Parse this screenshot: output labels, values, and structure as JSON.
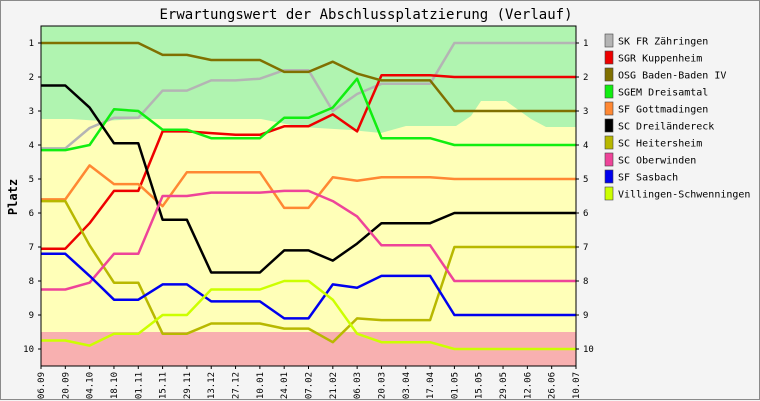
{
  "chart_data": {
    "type": "line",
    "title": "Erwartungswert der Abschlussplatzierung (Verlauf)",
    "ylabel": "Platz",
    "xlabel": "",
    "x": [
      "06.09",
      "20.09",
      "04.10",
      "18.10",
      "01.11",
      "15.11",
      "29.11",
      "13.12",
      "27.12",
      "10.01",
      "24.01",
      "07.02",
      "21.02",
      "06.03",
      "20.03",
      "03.04",
      "17.04",
      "01.05",
      "15.05",
      "29.05",
      "12.06",
      "26.06",
      "10.07"
    ],
    "ylim": [
      1,
      10
    ],
    "y_inverted": true,
    "yticks": [
      "1",
      "2",
      "3",
      "4",
      "5",
      "6",
      "7",
      "8",
      "9",
      "10"
    ],
    "legend_position": "right",
    "zones": [
      {
        "name": "top",
        "color": "#b0f4b0"
      },
      {
        "name": "middle",
        "color": "#ffffb8"
      },
      {
        "name": "bottom",
        "color": "#f8b0b0"
      }
    ],
    "series": [
      {
        "name": "SK FR Zähringen",
        "color": "#b4b4b4",
        "values": [
          4.1,
          4.1,
          3.5,
          3.2,
          3.2,
          2.4,
          2.4,
          2.1,
          2.1,
          2.05,
          1.8,
          1.8,
          3.0,
          2.5,
          2.2,
          2.2,
          2.2,
          1.0,
          1.0,
          1.0,
          1.0,
          1.0,
          1.0
        ]
      },
      {
        "name": "SGR Kuppenheim",
        "color": "#ee0000",
        "values": [
          7.05,
          7.05,
          6.3,
          5.35,
          5.35,
          3.6,
          3.6,
          3.65,
          3.7,
          3.7,
          3.45,
          3.45,
          3.1,
          3.6,
          1.95,
          1.95,
          1.95,
          2.0,
          2.0,
          2.0,
          2.0,
          2.0,
          2.0
        ]
      },
      {
        "name": "OSG Baden-Baden IV",
        "color": "#807000",
        "values": [
          1.0,
          1.0,
          1.0,
          1.0,
          1.0,
          1.35,
          1.35,
          1.5,
          1.5,
          1.5,
          1.85,
          1.85,
          1.55,
          1.9,
          2.1,
          2.1,
          2.1,
          3.0,
          3.0,
          3.0,
          3.0,
          3.0,
          3.0
        ]
      },
      {
        "name": "SGEM Dreisamtal",
        "color": "#11ee11",
        "values": [
          4.15,
          4.15,
          4.0,
          2.95,
          3.0,
          3.55,
          3.55,
          3.8,
          3.8,
          3.8,
          3.2,
          3.2,
          2.9,
          2.05,
          3.8,
          3.8,
          3.8,
          4.0,
          4.0,
          4.0,
          4.0,
          4.0,
          4.0
        ]
      },
      {
        "name": "SF Gottmadingen",
        "color": "#ff8833",
        "values": [
          5.6,
          5.6,
          4.6,
          5.15,
          5.15,
          5.8,
          4.8,
          4.8,
          4.8,
          4.8,
          5.85,
          5.85,
          4.95,
          5.05,
          4.95,
          4.95,
          4.95,
          5.0,
          5.0,
          5.0,
          5.0,
          5.0,
          5.0
        ]
      },
      {
        "name": "SC Dreiländereck",
        "color": "#000000",
        "values": [
          2.25,
          2.25,
          2.9,
          3.95,
          3.95,
          6.2,
          6.2,
          7.75,
          7.75,
          7.75,
          7.1,
          7.1,
          7.4,
          6.9,
          6.3,
          6.3,
          6.3,
          6.0,
          6.0,
          6.0,
          6.0,
          6.0,
          6.0
        ]
      },
      {
        "name": "SC Heitersheim",
        "color": "#b8b800",
        "values": [
          5.65,
          5.65,
          6.95,
          8.05,
          8.05,
          9.55,
          9.55,
          9.25,
          9.25,
          9.25,
          9.4,
          9.4,
          9.8,
          9.1,
          9.15,
          9.15,
          9.15,
          7.0,
          7.0,
          7.0,
          7.0,
          7.0,
          7.0
        ]
      },
      {
        "name": "SC Oberwinden",
        "color": "#ee4499",
        "values": [
          8.25,
          8.25,
          8.05,
          7.2,
          7.2,
          5.5,
          5.5,
          5.4,
          5.4,
          5.4,
          5.35,
          5.35,
          5.65,
          6.1,
          6.95,
          6.95,
          6.95,
          8.0,
          8.0,
          8.0,
          8.0,
          8.0,
          8.0
        ]
      },
      {
        "name": "SF Sasbach",
        "color": "#0000ee",
        "values": [
          7.2,
          7.2,
          7.85,
          8.55,
          8.55,
          8.1,
          8.1,
          8.6,
          8.6,
          8.6,
          9.1,
          9.1,
          8.1,
          8.2,
          7.85,
          7.85,
          7.85,
          9.0,
          9.0,
          9.0,
          9.0,
          9.0,
          9.0
        ]
      },
      {
        "name": "Villingen-Schwenningen",
        "color": "#ccff00",
        "values": [
          9.75,
          9.75,
          9.9,
          9.55,
          9.55,
          9.0,
          9.0,
          8.25,
          8.25,
          8.25,
          8.0,
          8.0,
          8.55,
          9.55,
          9.8,
          9.8,
          9.8,
          10.0,
          10.0,
          10.0,
          10.0,
          10.0,
          10.0
        ]
      }
    ]
  }
}
